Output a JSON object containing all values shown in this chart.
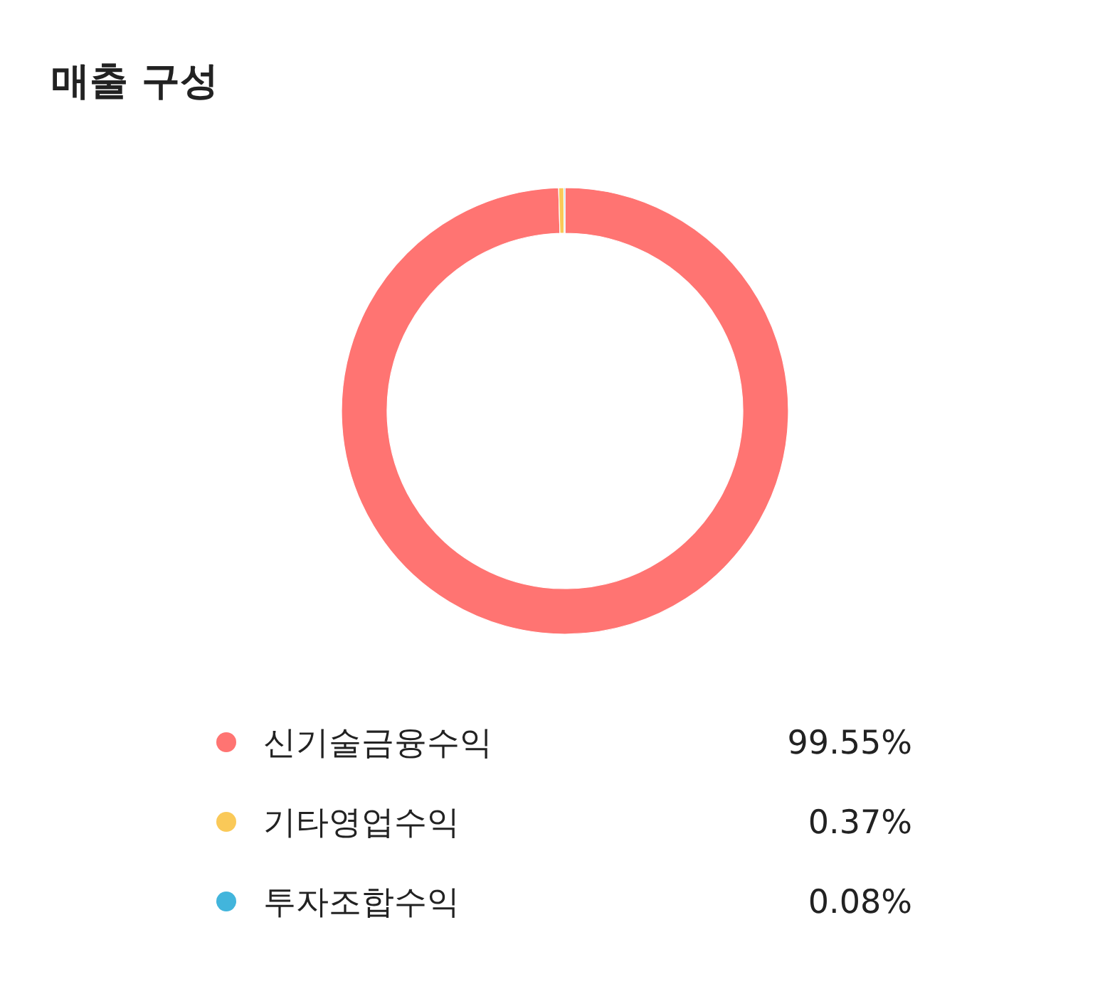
{
  "chart_data": {
    "type": "donut",
    "title": "매출 구성",
    "categories": [
      "신기술금융수익",
      "기타영업수익",
      "투자조합수익"
    ],
    "values": [
      99.55,
      0.37,
      0.08
    ],
    "value_labels": [
      "99.55%",
      "0.37%",
      "0.08%"
    ],
    "colors": [
      "#ff7472",
      "#fac958",
      "#42b5dc"
    ],
    "legend": "bottom"
  }
}
